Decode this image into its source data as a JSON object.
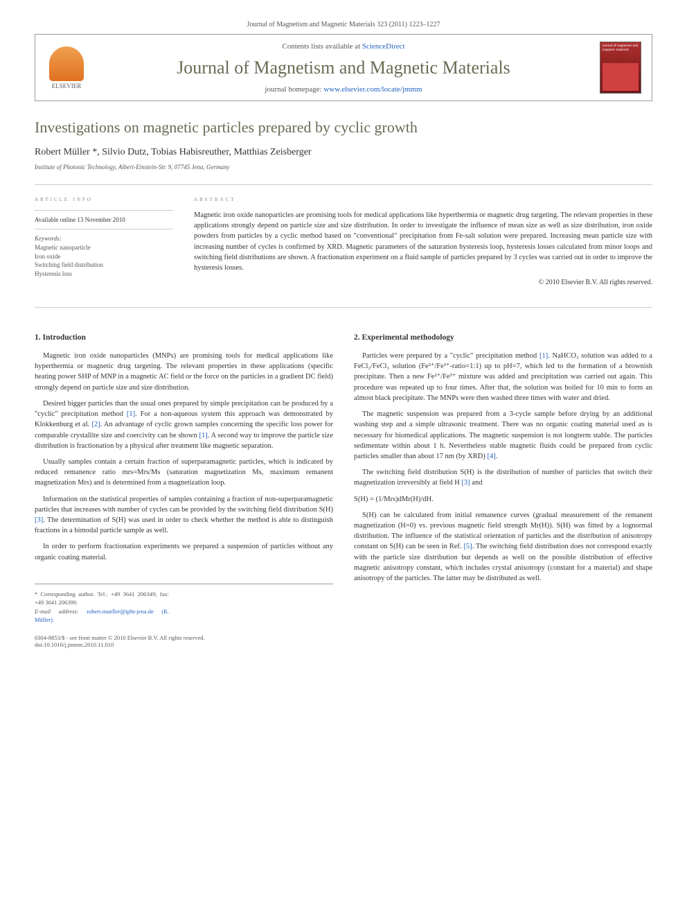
{
  "top_bar": "Journal of Magnetism and Magnetic Materials 323 (2011) 1223–1227",
  "header": {
    "contents_prefix": "Contents lists available at ",
    "contents_link": "ScienceDirect",
    "journal_title": "Journal of Magnetism and Magnetic Materials",
    "homepage_prefix": "journal homepage: ",
    "homepage_link": "www.elsevier.com/locate/jmmm",
    "elsevier_label": "ELSEVIER",
    "cover_text": "journal of magnetism and magnetic materials"
  },
  "article": {
    "title": "Investigations on magnetic particles prepared by cyclic growth",
    "authors": "Robert Müller *, Silvio Dutz, Tobias Habisreuther, Matthias Zeisberger",
    "affiliation": "Institute of Photonic Technology, Albert-Einstein-Str. 9, 07745 Jena, Germany"
  },
  "info": {
    "section_label": "article info",
    "available": "Available online 13 November 2010",
    "keywords_label": "Keywords:",
    "keywords": [
      "Magnetic nanoparticle",
      "Iron oxide",
      "Switching field distribution",
      "Hysteresis loss"
    ]
  },
  "abstract": {
    "section_label": "abstract",
    "text": "Magnetic iron oxide nanoparticles are promising tools for medical applications like hyperthermia or magnetic drug targeting. The relevant properties in these applications strongly depend on particle size and size distribution. In order to investigate the influence of mean size as well as size distribution, iron oxide powders from particles by a cyclic method based on \"conventional\" precipitation from Fe-salt solution were prepared. Increasing mean particle size with increasing number of cycles is confirmed by XRD. Magnetic parameters of the saturation hysteresis loop, hysteresis losses calculated from minor loops and switching field distributions are shown. A fractionation experiment on a fluid sample of particles prepared by 3 cycles was carried out in order to improve the hysteresis losses.",
    "copyright": "© 2010 Elsevier B.V. All rights reserved."
  },
  "body": {
    "col1": {
      "s1_heading": "1. Introduction",
      "s1_p1": "Magnetic iron oxide nanoparticles (MNPs) are promising tools for medical applications like hyperthermia or magnetic drug targeting. The relevant properties in these applications (specific heating power SHP of MNP in a magnetic AC field or the force on the particles in a gradient DC field) strongly depend on particle size and size distribution.",
      "s1_p2_a": "Desired bigger particles than the usual ones prepared by simple precipitation can be produced by a \"cyclic\" precipitation method ",
      "s1_p2_ref1": "[1]",
      "s1_p2_b": ". For a non-aqueous system this approach was demonstrated by Klokkenburg et al. ",
      "s1_p2_ref2": "[2]",
      "s1_p2_c": ". An advantage of cyclic grown samples concerning the specific loss power for comparable crystallite size and coercivity can be shown ",
      "s1_p2_ref3": "[1]",
      "s1_p2_d": ". A second way to improve the particle size distribution is fractionation by a physical after treatment like magnetic separation.",
      "s1_p3": "Usually samples contain a certain fraction of superparamagnetic particles, which is indicated by reduced remanence ratio mrs=Mrs/Ms (saturation magnetization Ms, maximum remanent magnetization Mrs) and is determined from a magnetization loop.",
      "s1_p4_a": "Information on the statistical properties of samples containing a fraction of non-superparamagnetic particles that increases with number of cycles can be provided by the switching field distribution S(H) ",
      "s1_p4_ref": "[3]",
      "s1_p4_b": ". The determination of S(H) was used in order to check whether the method is able to distinguish fractions in a bimodal particle sample as well.",
      "s1_p5": "In order to perform fractionation experiments we prepared a suspension of particles without any organic coating material."
    },
    "col2": {
      "s2_heading": "2. Experimental methodology",
      "s2_p1_a": "Particles were prepared by a \"cyclic\" precipitation method ",
      "s2_p1_ref": "[1]",
      "s2_p1_b": ". NaHCO₃ solution was added to a FeCl₂/FeCl₃ solution (Fe²⁺/Fe³⁺-ratio=1:1) up to pH=7, which led to the formation of a brownish precipitate. Then a new Fe²⁺/Fe³⁺ mixture was added and precipitation was carried out again. This procedure was repeated up to four times. After that, the solution was boiled for 10 min to form an almost black precipitate. The MNPs were then washed three times with water and dried.",
      "s2_p2_a": "The magnetic suspension was prepared from a 3-cycle sample before drying by an additional washing step and a simple ultrasonic treatment. There was no organic coating material used as is necessary for biomedical applications. The magnetic suspension is not longterm stable. The particles sedimentate within about 1 h. Nevertheless stable magnetic fluids could be prepared from cyclic particles smaller than about 17 nm (by XRD) ",
      "s2_p2_ref": "[4]",
      "s2_p2_b": ".",
      "s2_p3_a": "The switching field distribution S(H) is the distribution of number of particles that switch their magnetization irreversibly at field H ",
      "s2_p3_ref": "[3]",
      "s2_p3_b": " and",
      "s2_formula": "S(H) = (1/Mrs)dMr(H)/dH.",
      "s2_p4_a": "S(H) can be calculated from initial remanence curves (gradual measurement of the remanent magnetization (H=0) vs. previous magnetic field strength Mr(H)). S(H) was fitted by a lognormal distribution. The influence of the statistical orientation of particles and the distribution of anisotropy constant on S(H) can be seen in Ref. ",
      "s2_p4_ref": "[5]",
      "s2_p4_b": ". The switching field distribution does not correspond exactly with the particle size distribution but depends as well on the possible distribution of effective magnetic anisotropy constant, which includes crystal anisotropy (constant for a material) and shape anisotropy of the particles. The latter may be distributed as well."
    }
  },
  "footer": {
    "corresponding": "* Corresponding author. Tel.: +49 3641 206349; fax: +49 3641 206399.",
    "email_label": "E-mail address: ",
    "email": "robert.mueller@ipht-jena.de (R. Müller).",
    "issn": "0304-8853/$ - see front matter © 2010 Elsevier B.V. All rights reserved.",
    "doi": "doi:10.1016/j.jmmm.2010.11.010"
  },
  "colors": {
    "text": "#333333",
    "muted": "#555555",
    "heading": "#6a6a55",
    "link": "#2060c0",
    "rule": "#cccccc",
    "cover1": "#b03030",
    "cover2": "#8a2020",
    "elsevier": "#e07020"
  },
  "typography": {
    "body_fontsize": 10.5,
    "title_fontsize": 22,
    "journal_fontsize": 26,
    "heading_fontsize": 11.5,
    "small_fontsize": 9
  }
}
